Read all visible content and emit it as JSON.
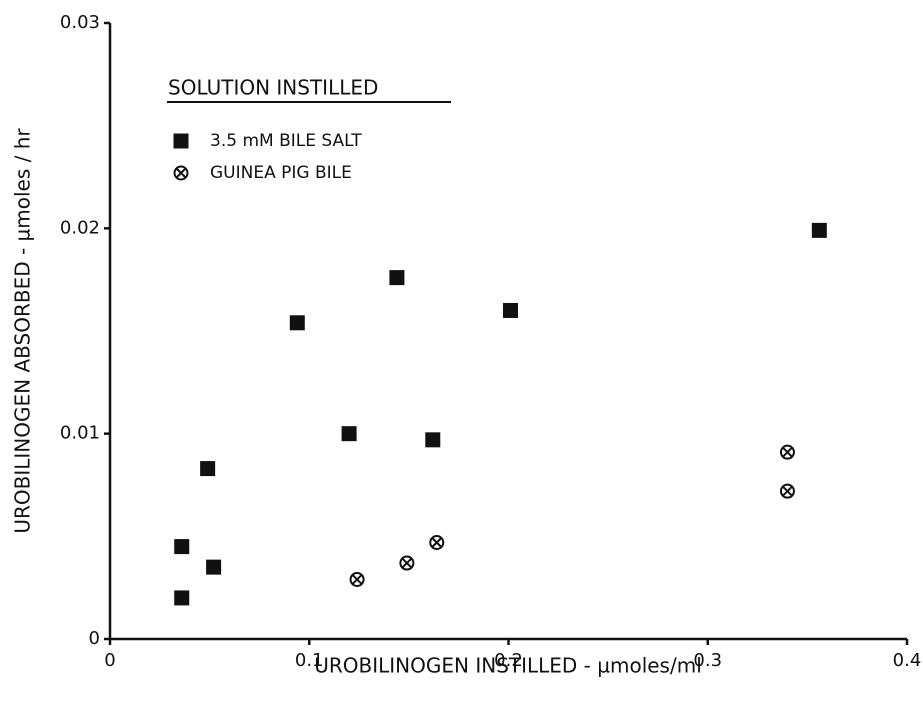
{
  "chart_data": {
    "type": "scatter",
    "xlabel": "UROBILINOGEN INSTILLED - µmoles/ml",
    "ylabel": "UROBILINOGEN ABSORBED - µmoles / hr",
    "legend_title": "SOLUTION INSTILLED",
    "series": [
      {
        "name": "3.5 mM BILE SALT",
        "color": "#111111",
        "marker": "square",
        "x": [
          0.036,
          0.036,
          0.049,
          0.052,
          0.094,
          0.12,
          0.144,
          0.162,
          0.201,
          0.356
        ],
        "values": [
          0.0045,
          0.002,
          0.0083,
          0.0035,
          0.0154,
          0.01,
          0.0176,
          0.0097,
          0.016,
          0.0199
        ]
      },
      {
        "name": "GUINEA PIG BILE",
        "color": "#111111",
        "marker": "circle-x",
        "x": [
          0.124,
          0.149,
          0.164,
          0.34,
          0.34
        ],
        "values": [
          0.0029,
          0.0037,
          0.0047,
          0.0091,
          0.0072
        ]
      }
    ],
    "xlim": [
      0,
      0.4
    ],
    "xticks": [
      0,
      0.1,
      0.2,
      0.3,
      0.4
    ],
    "ylim": [
      0,
      0.03
    ],
    "yticks": [
      0,
      0.01,
      0.02,
      0.03
    ],
    "grid": false
  }
}
